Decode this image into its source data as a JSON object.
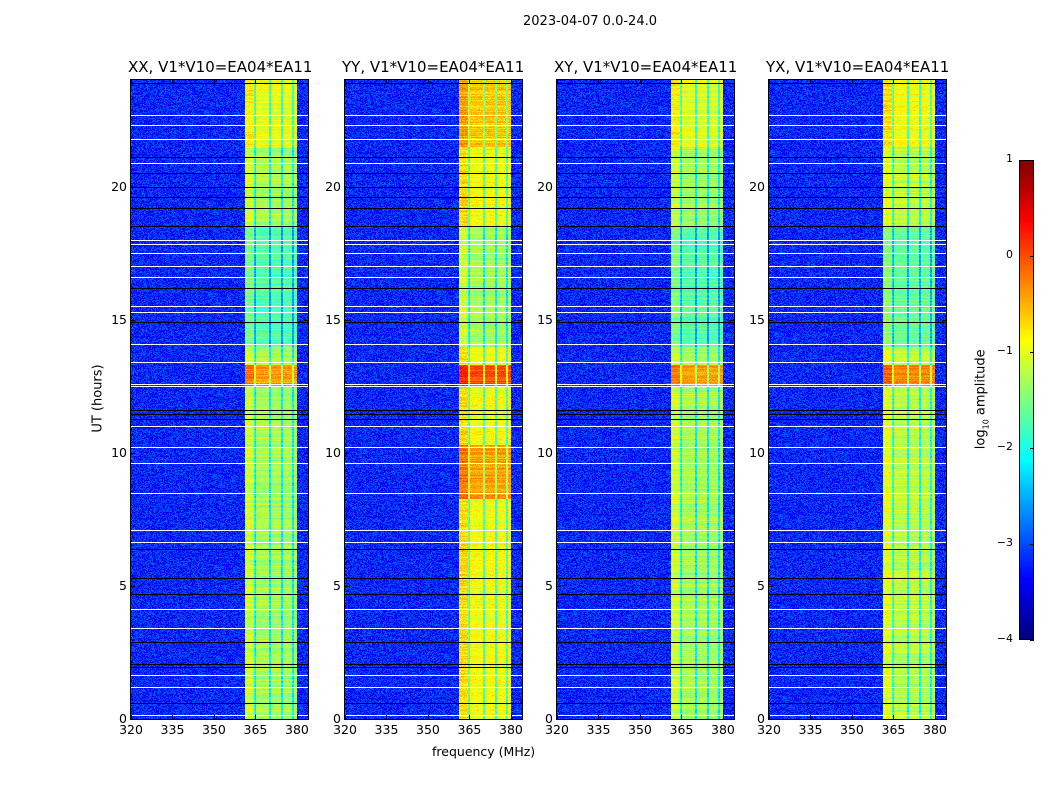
{
  "chart_data": {
    "type": "heatmap",
    "title": "2023-04-07 0.0-24.0",
    "xlabel": "frequency (MHz)",
    "ylabel": "UT (hours)",
    "xlim": [
      320,
      384
    ],
    "ylim": [
      0,
      24
    ],
    "xticks": [
      320,
      335,
      350,
      365,
      380
    ],
    "xtick_labels": [
      "320",
      "335",
      "350",
      "365",
      "380"
    ],
    "yticks": [
      0,
      5,
      10,
      15,
      20
    ],
    "ytick_labels": [
      "0",
      "5",
      "10",
      "15",
      "20"
    ],
    "panels": [
      {
        "title": "XX, V1*V10=EA04*EA11",
        "band_level": -1.3
      },
      {
        "title": "YY, V1*V10=EA04*EA11",
        "band_level": -0.9
      },
      {
        "title": "XY, V1*V10=EA04*EA11",
        "band_level": -1.3
      },
      {
        "title": "YX, V1*V10=EA04*EA11",
        "band_level": -1.2
      }
    ],
    "background_level": -3.2,
    "rfi_band_mhz": [
      361,
      380
    ],
    "band_gaps_mhz": [
      364.6,
      370,
      374.3,
      378.5
    ],
    "bright_intervals_hours": [
      [
        12.5,
        13.3
      ],
      [
        21.5,
        24
      ]
    ],
    "flagged_white_hours": [
      0.15,
      1.2,
      1.65,
      3.4,
      4.15,
      6.65,
      7.1,
      8.5,
      9.6,
      10.2,
      11.0,
      12.5,
      12.6,
      13.4,
      14.1,
      15.3,
      15.5,
      16.6,
      17.0,
      17.5,
      17.85,
      18.0,
      20.9,
      21.8,
      22.3,
      22.7
    ],
    "flagged_black_hours": [
      0.6,
      1.95,
      2.05,
      2.9,
      4.7,
      5.3,
      6.4,
      11.25,
      11.45,
      11.6,
      14.9,
      16.2,
      18.5,
      19.2,
      19.6,
      20.0,
      20.5,
      21.1,
      23.9
    ],
    "colorbar": {
      "label": "log10 amplitude",
      "label_base": "log",
      "label_sub": "10",
      "label_rest": " amplitude",
      "range": [
        -4,
        1
      ],
      "ticks": [
        1,
        0,
        -1,
        -2,
        -3,
        -4
      ],
      "tick_labels": [
        "1",
        "0",
        "−1",
        "−2",
        "−3",
        "−4"
      ],
      "colormap": "jet"
    }
  }
}
